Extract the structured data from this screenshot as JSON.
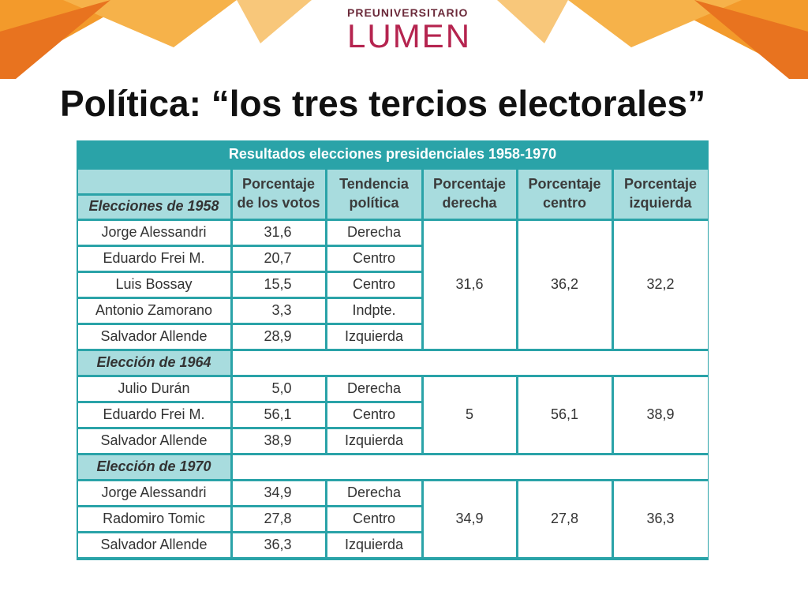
{
  "logo": {
    "top": "PREUNIVERSITARIO",
    "name": "LUMEN"
  },
  "title": "Política: “los tres tercios electorales”",
  "table": {
    "caption": "Resultados elecciones presidenciales 1958-1970",
    "headers": [
      [
        "Porcentaje",
        "de los votos"
      ],
      [
        "Tendencia",
        "política"
      ],
      [
        "Porcentaje",
        "derecha"
      ],
      [
        "Porcentaje",
        "centro"
      ],
      [
        "Porcentaje",
        "izquierda"
      ]
    ],
    "groups": [
      {
        "label": "Elecciones de 1958",
        "rows": [
          [
            "Jorge Alessandri",
            "31,6",
            "Derecha"
          ],
          [
            "Eduardo Frei M.",
            "20,7",
            "Centro"
          ],
          [
            "Luis Bossay",
            "15,5",
            "Centro"
          ],
          [
            "Antonio Zamorano",
            "3,3",
            "Indpte."
          ],
          [
            "Salvador Allende",
            "28,9",
            "Izquierda"
          ]
        ],
        "totals": [
          "31,6",
          "36,2",
          "32,2"
        ]
      },
      {
        "label": "Elección de 1964",
        "rows": [
          [
            "Julio Durán",
            "5,0",
            "Derecha"
          ],
          [
            "Eduardo Frei M.",
            "56,1",
            "Centro"
          ],
          [
            "Salvador Allende",
            "38,9",
            "Izquierda"
          ]
        ],
        "totals": [
          "5",
          "56,1",
          "38,9"
        ]
      },
      {
        "label": "Elección de 1970",
        "rows": [
          [
            "Jorge Alessandri",
            "34,9",
            "Derecha"
          ],
          [
            "Radomiro Tomic",
            "27,8",
            "Centro"
          ],
          [
            "Salvador Allende",
            "36,3",
            "Izquierda"
          ]
        ],
        "totals": [
          "34,9",
          "27,8",
          "36,3"
        ]
      }
    ]
  }
}
